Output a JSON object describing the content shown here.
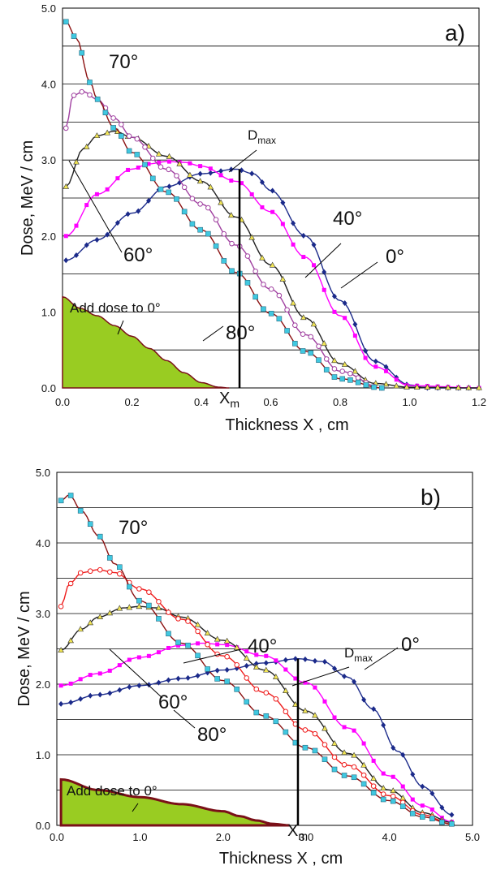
{
  "chart_data": [
    {
      "type": "line",
      "panel": "a)",
      "xlabel": "Thickness  X , cm",
      "ylabel": "Dose, MeV / cm",
      "xlim": [
        0,
        1.2
      ],
      "ylim": [
        0,
        5
      ],
      "xticks": [
        "0.0",
        "0.2",
        "0.4",
        "0.6",
        "0.8",
        "1.0",
        "1.2"
      ],
      "yticks": [
        "0.0",
        "1.0",
        "2.0",
        "3.0",
        "4.0",
        "5.0"
      ],
      "grid": "horizontal",
      "series": [
        {
          "name": "0°",
          "color": "#1b2a8a",
          "marker": "diamond",
          "x_range": [
            0.01,
            1.2
          ],
          "x": [
            0.01,
            0.1,
            0.2,
            0.3,
            0.4,
            0.5,
            0.55,
            0.6,
            0.7,
            0.8,
            0.9,
            1.0,
            1.05,
            1.2
          ],
          "y": [
            1.68,
            1.95,
            2.3,
            2.65,
            2.82,
            2.88,
            2.82,
            2.6,
            2.0,
            1.15,
            0.35,
            0.04,
            0.0,
            0.0
          ]
        },
        {
          "name": "40°",
          "color": "#ff00ff",
          "marker": "square",
          "x_range": [
            0.01,
            1.2
          ],
          "x": [
            0.01,
            0.1,
            0.2,
            0.25,
            0.3,
            0.35,
            0.4,
            0.5,
            0.6,
            0.7,
            0.8,
            0.9,
            1.0,
            1.2
          ],
          "y": [
            2.0,
            2.55,
            2.88,
            2.95,
            2.98,
            2.97,
            2.92,
            2.72,
            2.32,
            1.72,
            0.95,
            0.28,
            0.03,
            0.0
          ]
        },
        {
          "name": "60°",
          "color": "#222222",
          "marker": "triangle",
          "x_range": [
            0.01,
            1.2
          ],
          "x": [
            0.01,
            0.06,
            0.1,
            0.15,
            0.2,
            0.3,
            0.4,
            0.5,
            0.6,
            0.7,
            0.8,
            0.9,
            1.0,
            1.2
          ],
          "y": [
            2.65,
            3.15,
            3.32,
            3.38,
            3.3,
            3.05,
            2.72,
            2.25,
            1.62,
            0.92,
            0.32,
            0.06,
            0.01,
            0.0
          ]
        },
        {
          "name": "70°",
          "color": "#a040a0",
          "marker": "circle",
          "x_range": [
            0.01,
            0.92
          ],
          "x": [
            0.01,
            0.03,
            0.06,
            0.1,
            0.15,
            0.2,
            0.3,
            0.4,
            0.5,
            0.6,
            0.7,
            0.8,
            0.92
          ],
          "y": [
            3.42,
            3.85,
            3.9,
            3.8,
            3.55,
            3.3,
            2.88,
            2.42,
            1.88,
            1.3,
            0.7,
            0.22,
            0.0
          ]
        },
        {
          "name": "80°",
          "color": "#8b1010",
          "marker": "square",
          "marker_fill": "#40c8e0",
          "x_range": [
            0.01,
            0.92
          ],
          "x": [
            0.01,
            0.04,
            0.08,
            0.1,
            0.15,
            0.2,
            0.3,
            0.4,
            0.5,
            0.6,
            0.7,
            0.8,
            0.92
          ],
          "y": [
            4.82,
            4.6,
            4.02,
            3.8,
            3.42,
            3.1,
            2.58,
            2.08,
            1.52,
            0.98,
            0.48,
            0.12,
            0.0
          ]
        }
      ],
      "fill_area": {
        "label": "Add dose to 0°",
        "color": "#99cc22",
        "x": [
          0,
          0.05,
          0.1,
          0.15,
          0.2,
          0.25,
          0.3,
          0.35,
          0.4,
          0.45,
          0.48
        ],
        "y": [
          1.2,
          1.05,
          0.95,
          0.82,
          0.68,
          0.52,
          0.36,
          0.2,
          0.07,
          0.01,
          0.0
        ]
      },
      "vertical_line": {
        "x": 0.51,
        "y": 2.88,
        "label": "X",
        "label_sub": "m"
      },
      "annotation": {
        "label": "D",
        "label_sub": "max"
      }
    },
    {
      "type": "line",
      "panel": "b)",
      "xlabel": "Thickness  X , cm",
      "ylabel": "Dose, MeV / cm",
      "xlim": [
        0,
        5
      ],
      "ylim": [
        0,
        5
      ],
      "xticks": [
        "0.0",
        "1.0",
        "2.0",
        "3.0",
        "4.0",
        "5.0"
      ],
      "yticks": [
        "0.0",
        "1.0",
        "2.0",
        "3.0",
        "4.0",
        "5.0"
      ],
      "grid": "horizontal",
      "series": [
        {
          "name": "0°",
          "color": "#1b2a8a",
          "marker": "diamond",
          "x_range": [
            0.05,
            4.75
          ],
          "x": [
            0.05,
            0.5,
            1.0,
            1.5,
            2.0,
            2.5,
            2.9,
            3.2,
            3.5,
            3.8,
            4.1,
            4.4,
            4.75
          ],
          "y": [
            1.72,
            1.85,
            1.98,
            2.08,
            2.2,
            2.3,
            2.36,
            2.32,
            2.1,
            1.65,
            1.05,
            0.55,
            0.15
          ]
        },
        {
          "name": "40°",
          "color": "#ff00ff",
          "marker": "square",
          "x_range": [
            0.05,
            4.75
          ],
          "x": [
            0.05,
            0.5,
            1.0,
            1.5,
            1.75,
            2.0,
            2.5,
            3.0,
            3.5,
            4.0,
            4.4,
            4.75
          ],
          "y": [
            1.98,
            2.15,
            2.38,
            2.55,
            2.58,
            2.56,
            2.4,
            2.02,
            1.38,
            0.7,
            0.28,
            0.05
          ]
        },
        {
          "name": "60°",
          "color": "#222222",
          "marker": "triangle",
          "x_range": [
            0.05,
            4.75
          ],
          "x": [
            0.05,
            0.3,
            0.5,
            0.8,
            1.0,
            1.2,
            1.5,
            2.0,
            2.5,
            3.0,
            3.5,
            4.0,
            4.4,
            4.75
          ],
          "y": [
            2.48,
            2.78,
            2.95,
            3.08,
            3.1,
            3.08,
            2.95,
            2.62,
            2.2,
            1.62,
            1.02,
            0.5,
            0.18,
            0.04
          ]
        },
        {
          "name": "70°",
          "color": "#ee1c1c",
          "marker": "circle",
          "x_range": [
            0.05,
            4.75
          ],
          "x": [
            0.05,
            0.15,
            0.3,
            0.5,
            0.7,
            1.0,
            1.5,
            2.0,
            2.5,
            3.0,
            3.5,
            4.0,
            4.4,
            4.75
          ],
          "y": [
            3.1,
            3.42,
            3.58,
            3.62,
            3.58,
            3.35,
            2.92,
            2.4,
            1.88,
            1.35,
            0.85,
            0.42,
            0.15,
            0.02
          ]
        },
        {
          "name": "80°",
          "color": "#8b1010",
          "marker": "square",
          "marker_fill": "#40c8e0",
          "x_range": [
            0.05,
            4.75
          ],
          "x": [
            0.05,
            0.15,
            0.3,
            0.5,
            0.7,
            1.0,
            1.5,
            2.0,
            2.5,
            3.0,
            3.5,
            4.0,
            4.4,
            4.75
          ],
          "y": [
            4.6,
            4.68,
            4.45,
            4.1,
            3.7,
            3.18,
            2.58,
            2.05,
            1.55,
            1.1,
            0.7,
            0.35,
            0.12,
            0.02
          ]
        }
      ],
      "fill_area": {
        "label": "Add dose to 0°",
        "color": "#99cc22",
        "x": [
          0.05,
          0.5,
          1.0,
          1.5,
          2.0,
          2.2,
          2.4,
          2.6,
          2.8
        ],
        "y": [
          0.65,
          0.5,
          0.4,
          0.3,
          0.2,
          0.13,
          0.07,
          0.02,
          0.0
        ]
      },
      "vertical_line": {
        "x": 2.9,
        "y": 2.36,
        "label": "X",
        "label_sub": "m"
      },
      "annotation": {
        "label": "D",
        "label_sub": "max"
      }
    }
  ]
}
